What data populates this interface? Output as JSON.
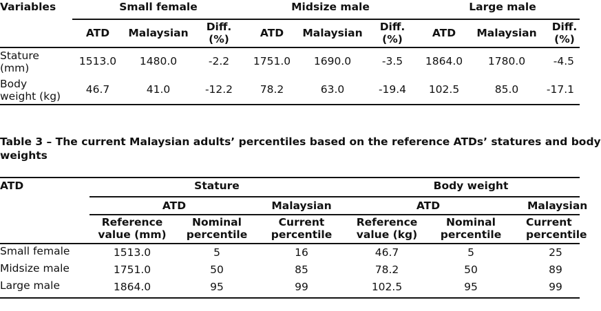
{
  "table2": {
    "col_variables": "Variables",
    "group_small_female": "Small female",
    "group_midsize_male": "Midsize male",
    "group_large_male": "Large male",
    "sub_atd": "ATD",
    "sub_malaysian": "Malaysian",
    "sub_diff_line1": "Diff.",
    "sub_diff_line2": "(%)",
    "rows": [
      {
        "label_line1": "Stature",
        "label_line2": "(mm)",
        "values": [
          "1513.0",
          "1480.0",
          "-2.2",
          "1751.0",
          "1690.0",
          "-3.5",
          "1864.0",
          "1780.0",
          "-4.5"
        ]
      },
      {
        "label_line1": "Body",
        "label_line2": "weight (kg)",
        "values": [
          "46.7",
          "41.0",
          "-12.2",
          "78.2",
          "63.0",
          "-19.4",
          "102.5",
          "85.0",
          "-17.1"
        ]
      }
    ]
  },
  "table3": {
    "caption_line1": "Table 3 – The current Malaysian adults’ percentiles based on the reference ATDs’ statures and body",
    "caption_line2": "weights",
    "col_atd": "ATD",
    "group_stature": "Stature",
    "group_body_weight": "Body weight",
    "sub_atd": "ATD",
    "sub_malaysian": "Malaysian",
    "h_ref_mm_1": "Reference",
    "h_ref_mm_2": "value (mm)",
    "h_nominal_1": "Nominal",
    "h_nominal_2": "percentile",
    "h_current_1": "Current",
    "h_current_2": "percentile",
    "h_ref_kg_1": "Reference",
    "h_ref_kg_2": "value (kg)",
    "rows": [
      {
        "label": "Small female",
        "values": [
          "1513.0",
          "5",
          "16",
          "46.7",
          "5",
          "25"
        ]
      },
      {
        "label": "Midsize male",
        "values": [
          "1751.0",
          "50",
          "85",
          "78.2",
          "50",
          "89"
        ]
      },
      {
        "label": "Large male",
        "values": [
          "1864.0",
          "95",
          "99",
          "102.5",
          "95",
          "99"
        ]
      }
    ]
  }
}
